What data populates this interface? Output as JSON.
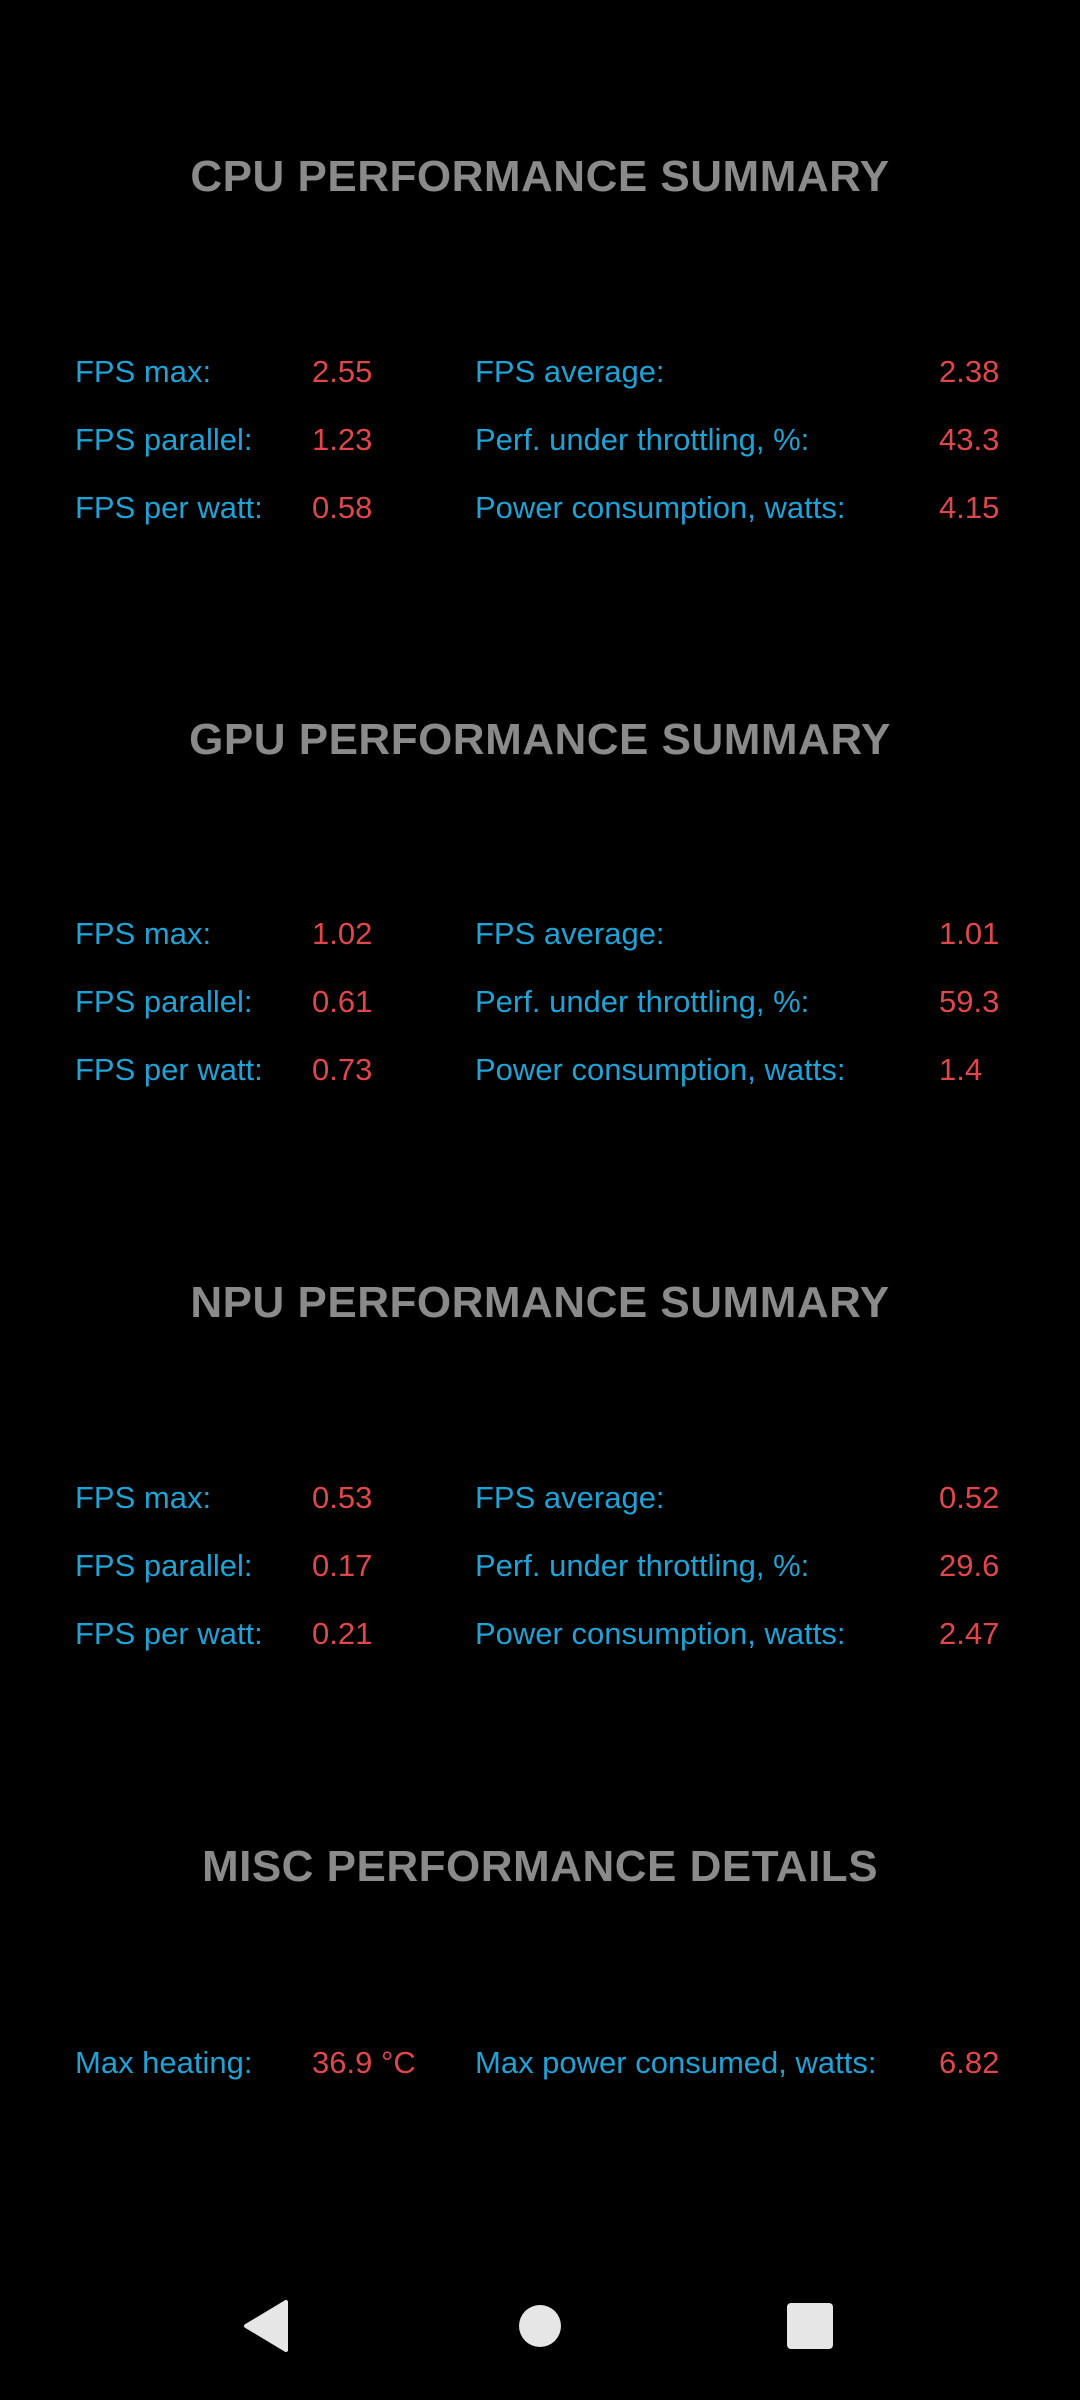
{
  "sections": [
    {
      "title": "CPU PERFORMANCE SUMMARY",
      "rows": [
        {
          "l1": "FPS max:",
          "v1": "2.55",
          "l2": "FPS average:",
          "v2": "2.38"
        },
        {
          "l1": "FPS parallel:",
          "v1": "1.23",
          "l2": "Perf. under throttling, %:",
          "v2": "43.3"
        },
        {
          "l1": "FPS per watt:",
          "v1": "0.58",
          "l2": "Power consumption, watts:",
          "v2": "4.15"
        }
      ]
    },
    {
      "title": "GPU PERFORMANCE SUMMARY",
      "rows": [
        {
          "l1": "FPS max:",
          "v1": "1.02",
          "l2": "FPS average:",
          "v2": "1.01"
        },
        {
          "l1": "FPS parallel:",
          "v1": "0.61",
          "l2": "Perf. under throttling, %:",
          "v2": "59.3"
        },
        {
          "l1": "FPS per watt:",
          "v1": "0.73",
          "l2": "Power consumption, watts:",
          "v2": "1.4"
        }
      ]
    },
    {
      "title": "NPU PERFORMANCE SUMMARY",
      "rows": [
        {
          "l1": "FPS max:",
          "v1": "0.53",
          "l2": "FPS average:",
          "v2": "0.52"
        },
        {
          "l1": "FPS parallel:",
          "v1": "0.17",
          "l2": "Perf. under throttling, %:",
          "v2": "29.6"
        },
        {
          "l1": "FPS per watt:",
          "v1": "0.21",
          "l2": "Power consumption, watts:",
          "v2": "2.47"
        }
      ]
    },
    {
      "title": "MISC PERFORMANCE DETAILS",
      "rows": [
        {
          "l1": "Max heating:",
          "v1": "36.9 °C",
          "l2": "Max power consumed, watts:",
          "v2": "6.82"
        }
      ]
    }
  ],
  "navbar": {
    "icons": [
      "back-triangle-icon",
      "home-circle-icon",
      "recents-square-icon"
    ]
  },
  "colors": {
    "background": "#000000",
    "title": "#8a8a8a",
    "label": "#1fa2d6",
    "value": "#e0474c",
    "nav_icon": "#e6e6e6"
  }
}
